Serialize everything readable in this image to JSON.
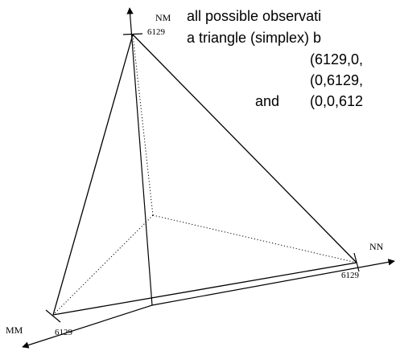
{
  "description_lines": [
    "all possible observati",
    "a triangle (simplex) b",
    "(6129,0,",
    "(0,6129,",
    "(0,0,612"
  ],
  "connector_word": "and",
  "axes": {
    "nm": {
      "label": "NM",
      "value": "6129"
    },
    "nn": {
      "label": "NN",
      "value": "6129"
    },
    "mm": {
      "label": "MM",
      "value": "6129"
    }
  }
}
